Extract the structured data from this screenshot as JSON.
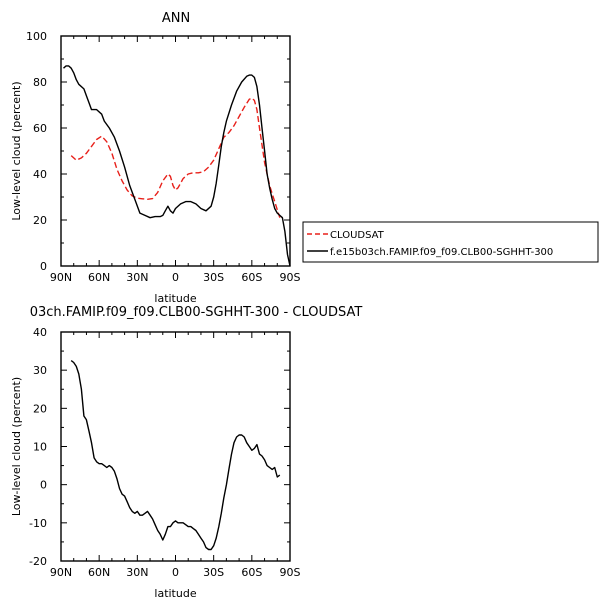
{
  "colors": {
    "cloudsat": "#e8201a",
    "model": "#000000",
    "axis": "#000000"
  },
  "legend": {
    "entries": [
      {
        "label": "CLOUDSAT",
        "color": "#e8201a",
        "dash": "dashed"
      },
      {
        "label": "f.e15b03ch.FAMIP.f09_f09.CLB00-SGHHT-300",
        "color": "#000000",
        "dash": "solid"
      }
    ]
  },
  "chart_data": [
    {
      "type": "line",
      "title": "ANN",
      "xlabel": "latitude",
      "ylabel": "Low-level cloud (percent)",
      "xlim": [
        90,
        -90
      ],
      "ylim": [
        0,
        100
      ],
      "xticks": [
        90,
        60,
        30,
        0,
        -30,
        -60,
        -90
      ],
      "xtick_labels": [
        "90N",
        "60N",
        "30N",
        "0",
        "30S",
        "60S",
        "90S"
      ],
      "yticks": [
        0,
        20,
        40,
        60,
        80,
        100
      ],
      "ytick_labels": [
        "0",
        "20",
        "40",
        "60",
        "80",
        "100"
      ],
      "legend_position": "right",
      "series": [
        {
          "name": "CLOUDSAT",
          "color": "#e8201a",
          "dash": "dashed",
          "x": [
            82,
            78,
            74,
            70,
            66,
            62,
            58,
            54,
            50,
            46,
            42,
            38,
            34,
            30,
            26,
            22,
            18,
            14,
            10,
            6,
            4,
            2,
            0,
            -2,
            -4,
            -6,
            -10,
            -14,
            -18,
            -22,
            -26,
            -30,
            -34,
            -38,
            -42,
            -46,
            -50,
            -54,
            -58,
            -60,
            -62,
            -64,
            -66,
            -70,
            -74,
            -78,
            -82
          ],
          "y": [
            48,
            46,
            47,
            49,
            52,
            55,
            56.5,
            54,
            49,
            42,
            37,
            33,
            30.5,
            29.5,
            29.2,
            29,
            29.3,
            32,
            37,
            40,
            39,
            35,
            33,
            34,
            36,
            38,
            40,
            40.5,
            40.5,
            41,
            43,
            46,
            51,
            56,
            58,
            61,
            65,
            69,
            72.5,
            73,
            72,
            68,
            60,
            45,
            35,
            28,
            21
          ]
        },
        {
          "name": "f.e15b03ch.FAMIP.f09_f09.CLB00-SGHHT-300",
          "color": "#000000",
          "dash": "solid",
          "x": [
            88,
            86,
            84,
            82,
            80,
            78,
            76,
            72,
            70,
            68,
            66,
            62,
            58,
            56,
            52,
            48,
            44,
            40,
            36,
            32,
            28,
            24,
            20,
            16,
            12,
            10,
            8,
            6,
            4,
            2,
            0,
            -4,
            -8,
            -12,
            -16,
            -20,
            -24,
            -28,
            -30,
            -32,
            -34,
            -36,
            -38,
            -40,
            -44,
            -48,
            -52,
            -56,
            -58,
            -60,
            -62,
            -64,
            -66,
            -68,
            -70,
            -72,
            -74,
            -76,
            -78,
            -80,
            -82,
            -84,
            -86,
            -88,
            -90
          ],
          "y": [
            86,
            87,
            87,
            86,
            84,
            81,
            79,
            77,
            74,
            71,
            68,
            68,
            66,
            63,
            60,
            56,
            50,
            43,
            35,
            29,
            23,
            22,
            21,
            21.5,
            21.5,
            22,
            24,
            26,
            24,
            23,
            25,
            27,
            28,
            28,
            27,
            25,
            24,
            26,
            30,
            36,
            44,
            52,
            58,
            63,
            70,
            76,
            80,
            82.5,
            83,
            83,
            82,
            78,
            70,
            60,
            50,
            40,
            34,
            29,
            25,
            23,
            22,
            21,
            15,
            5,
            0
          ]
        }
      ]
    },
    {
      "type": "line",
      "title": "03ch.FAMIP.f09_f09.CLB00-SGHHT-300 - CLOUDSAT",
      "xlabel": "latitude",
      "ylabel": "Low-level cloud (percent)",
      "xlim": [
        90,
        -90
      ],
      "ylim": [
        -20,
        40
      ],
      "xticks": [
        90,
        60,
        30,
        0,
        -30,
        -60,
        -90
      ],
      "xtick_labels": [
        "90N",
        "60N",
        "30N",
        "0",
        "30S",
        "60S",
        "90S"
      ],
      "yticks": [
        -20,
        -10,
        0,
        10,
        20,
        30,
        40
      ],
      "ytick_labels": [
        "-20",
        "-10",
        "0",
        "10",
        "20",
        "30",
        "40"
      ],
      "series": [
        {
          "color": "#000000",
          "dash": "solid",
          "x": [
            82,
            80,
            78,
            76,
            74,
            72,
            70,
            68,
            66,
            64,
            62,
            60,
            58,
            56,
            54,
            52,
            50,
            48,
            46,
            44,
            42,
            40,
            38,
            36,
            34,
            32,
            30,
            28,
            26,
            24,
            22,
            20,
            18,
            16,
            14,
            12,
            10,
            8,
            6,
            4,
            2,
            0,
            -2,
            -4,
            -6,
            -8,
            -10,
            -12,
            -14,
            -16,
            -18,
            -20,
            -22,
            -24,
            -26,
            -28,
            -30,
            -32,
            -34,
            -36,
            -38,
            -40,
            -42,
            -44,
            -46,
            -48,
            -50,
            -52,
            -54,
            -56,
            -58,
            -60,
            -62,
            -64,
            -66,
            -68,
            -70,
            -72,
            -74,
            -76,
            -78,
            -80,
            -82
          ],
          "y": [
            32.5,
            32,
            31,
            29,
            25,
            18,
            17,
            14,
            11,
            7,
            6,
            5.5,
            5.5,
            5,
            4.5,
            5,
            4.5,
            3.5,
            1.5,
            -1,
            -2.5,
            -3,
            -4.5,
            -6,
            -7,
            -7.5,
            -7,
            -8,
            -8,
            -7.5,
            -7,
            -8,
            -9,
            -10.5,
            -12,
            -13,
            -14.5,
            -13,
            -11,
            -11,
            -10,
            -9.5,
            -10,
            -10,
            -10,
            -10.5,
            -11,
            -11,
            -11.5,
            -12,
            -13,
            -14,
            -15,
            -16.5,
            -17,
            -17,
            -16,
            -14,
            -11,
            -7.5,
            -3.5,
            0,
            4,
            8,
            11,
            12.5,
            13,
            13,
            12.5,
            11,
            10,
            9,
            9.5,
            10.5,
            8,
            7.5,
            6.5,
            5,
            4.5,
            4,
            4.5,
            2,
            2.5
          ]
        }
      ]
    }
  ]
}
